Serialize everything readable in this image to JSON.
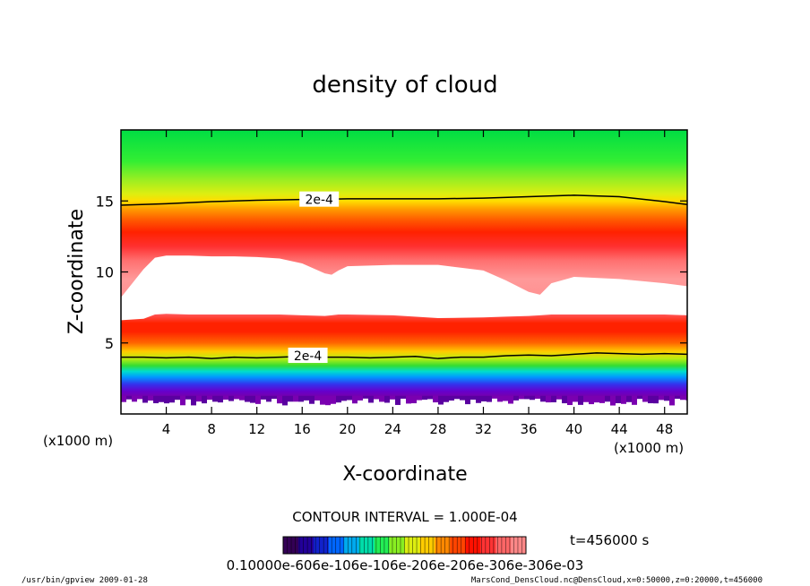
{
  "chart_data": {
    "type": "heatmap",
    "title": "density of cloud",
    "xlabel": "X-coordinate",
    "ylabel": "Z-coordinate",
    "x_unit": "(x1000 m)",
    "z_unit": "(x1000 m)",
    "xlim": [
      0,
      50
    ],
    "ylim": [
      0,
      20
    ],
    "x_ticks": [
      4,
      8,
      12,
      16,
      20,
      24,
      28,
      32,
      36,
      40,
      44,
      48
    ],
    "y_ticks": [
      5,
      10,
      15
    ],
    "contour_labels": [
      {
        "text": "2e-4",
        "x": 17.5,
        "z": 15.1
      },
      {
        "text": "2e-4",
        "x": 16.5,
        "z": 4.1
      }
    ],
    "contour_upper": {
      "x": [
        0,
        4,
        8,
        12,
        16,
        20,
        24,
        28,
        32,
        36,
        40,
        44,
        48,
        50
      ],
      "z": [
        14.7,
        14.8,
        14.95,
        15.05,
        15.1,
        15.15,
        15.15,
        15.15,
        15.2,
        15.3,
        15.4,
        15.3,
        14.95,
        14.75
      ]
    },
    "contour_lower": {
      "x": [
        0,
        2,
        4,
        6,
        8,
        10,
        12,
        14,
        16,
        18,
        20,
        22,
        24,
        26,
        28,
        30,
        32,
        34,
        36,
        38,
        40,
        42,
        44,
        46,
        48,
        50
      ],
      "z": [
        4.0,
        4.0,
        3.95,
        4.0,
        3.9,
        4.0,
        3.95,
        4.0,
        4.05,
        4.0,
        4.0,
        3.95,
        4.0,
        4.05,
        3.9,
        4.0,
        4.0,
        4.1,
        4.15,
        4.1,
        4.2,
        4.3,
        4.25,
        4.2,
        4.25,
        4.2
      ]
    },
    "white_region": {
      "x": [
        0,
        2,
        3,
        4,
        6,
        8,
        10,
        12,
        14,
        16,
        18,
        18.6,
        19.2,
        20,
        24,
        28,
        32,
        34,
        36,
        37,
        38,
        40,
        44,
        48,
        50
      ],
      "z_top": [
        8.2,
        10.2,
        11.0,
        11.15,
        11.15,
        11.1,
        11.1,
        11.05,
        10.95,
        10.6,
        9.9,
        9.8,
        10.1,
        10.4,
        10.5,
        10.5,
        10.1,
        9.4,
        8.6,
        8.4,
        9.2,
        9.65,
        9.5,
        9.2,
        9.0
      ],
      "z_bottom": [
        6.6,
        6.7,
        7.0,
        7.05,
        7.0,
        7.0,
        7.0,
        7.0,
        7.0,
        6.95,
        6.9,
        6.95,
        7.0,
        7.0,
        6.95,
        6.75,
        6.8,
        6.85,
        6.9,
        6.95,
        7.0,
        7.0,
        7.0,
        7.0,
        6.95
      ]
    },
    "color_stops": [
      {
        "z": 20.0,
        "color": "#00dd44"
      },
      {
        "z": 17.8,
        "color": "#33ee33"
      },
      {
        "z": 16.5,
        "color": "#99ee22"
      },
      {
        "z": 15.5,
        "color": "#ddee11"
      },
      {
        "z": 15.0,
        "color": "#ffdd00"
      },
      {
        "z": 14.4,
        "color": "#ff9900"
      },
      {
        "z": 13.6,
        "color": "#ff5500"
      },
      {
        "z": 12.8,
        "color": "#ff2200"
      },
      {
        "z": 11.8,
        "color": "#ff3030"
      },
      {
        "z": 10.8,
        "color": "#ff7070"
      },
      {
        "z": 9.5,
        "color": "#ff9999"
      },
      {
        "z": 8.0,
        "color": "#ff9090"
      },
      {
        "z": 7.0,
        "color": "#ff5555"
      },
      {
        "z": 6.4,
        "color": "#ff2200"
      },
      {
        "z": 5.8,
        "color": "#ff2200"
      },
      {
        "z": 5.0,
        "color": "#ff6600"
      },
      {
        "z": 4.4,
        "color": "#ffcc00"
      },
      {
        "z": 3.9,
        "color": "#bbee11"
      },
      {
        "z": 3.4,
        "color": "#33dd33"
      },
      {
        "z": 3.0,
        "color": "#00ddcc"
      },
      {
        "z": 2.6,
        "color": "#0099ff"
      },
      {
        "z": 2.1,
        "color": "#3333ee"
      },
      {
        "z": 1.6,
        "color": "#6600cc"
      },
      {
        "z": 1.2,
        "color": "#7700aa"
      },
      {
        "z": 1.1,
        "color": "#ffffff"
      }
    ]
  },
  "contour_interval": "CONTOUR INTERVAL = 1.000E-04",
  "time_label": "t=456000 s",
  "colorbar": {
    "labels": "0.10000e-606e-106e-106e-206e-206e-306e-306e-03",
    "colors": [
      "#330055",
      "#220099",
      "#1122cc",
      "#0066ff",
      "#00aaee",
      "#00ddaa",
      "#22ee55",
      "#88ee22",
      "#ddee11",
      "#ffcc00",
      "#ff8800",
      "#ff4400",
      "#ff1100",
      "#ff3333",
      "#ff6666",
      "#ff8888"
    ]
  },
  "footer": {
    "left": "/usr/bin/gpview  2009-01-28",
    "right": "MarsCond_DensCloud.nc@DensCloud,x=0:50000,z=0:20000,t=456000"
  }
}
